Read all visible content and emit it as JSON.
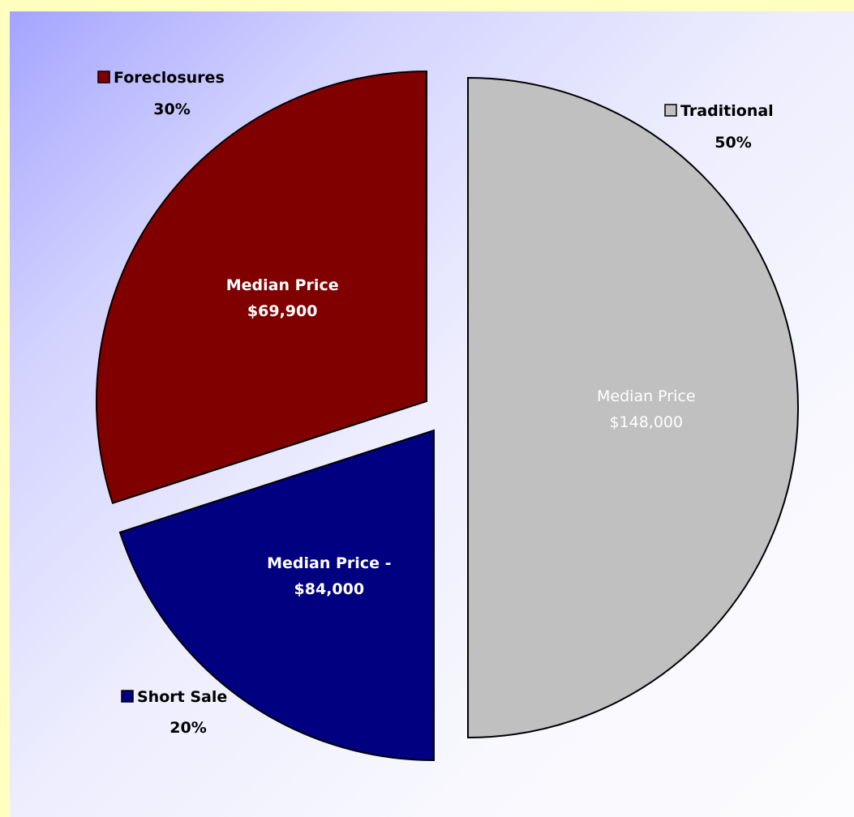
{
  "chart_data": {
    "type": "pie",
    "slices": [
      {
        "name": "Traditional",
        "value": 50,
        "percent_label": "50%",
        "inner_label_1": "Median Price",
        "inner_label_2": "$148,000",
        "color": "#C0C0C0"
      },
      {
        "name": "Short Sale",
        "value": 20,
        "percent_label": "20%",
        "inner_label_1": "Median Price -",
        "inner_label_2": "$84,000",
        "color": "#000080"
      },
      {
        "name": "Foreclosures",
        "value": 30,
        "percent_label": "30%",
        "inner_label_1": "Median Price",
        "inner_label_2": "$69,900",
        "color": "#800000"
      }
    ],
    "legend": "beside each slice",
    "colors": {
      "page_background": "#FFFFC0",
      "inner_label_light": "#FFFFFF",
      "outer_label": "#000000"
    }
  }
}
